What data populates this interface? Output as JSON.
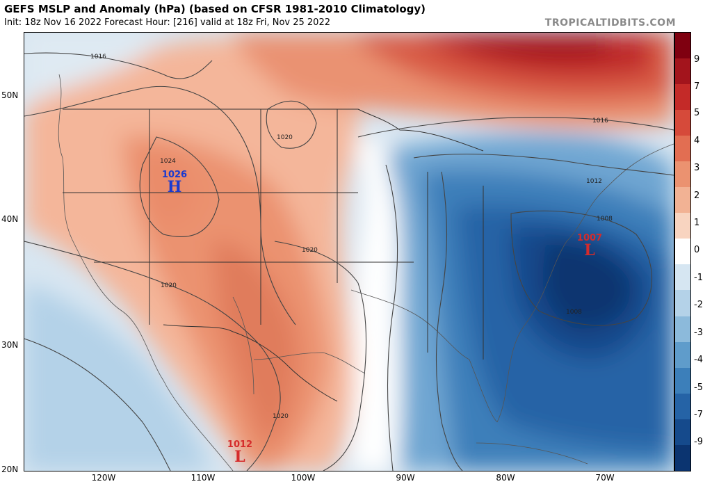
{
  "header": {
    "title": "GEFS MSLP and Anomaly (hPa) (based on CFSR 1981-2010 Climatology)",
    "subtitle": "Init: 18z Nov 16 2022   Forecast Hour: [216]   valid at 18z Fri, Nov 25 2022",
    "credit": "TROPICALTIDBITS.COM"
  },
  "axes": {
    "lat_labels": [
      "50N",
      "40N",
      "30N",
      "20N"
    ],
    "lon_labels": [
      "120W",
      "110W",
      "100W",
      "90W",
      "80W",
      "70W"
    ]
  },
  "colorbar": {
    "labels": [
      "9",
      "7",
      "5",
      "4",
      "3",
      "2",
      "1",
      "0",
      "-1",
      "-2",
      "-3",
      "-4",
      "-5",
      "-7",
      "-9"
    ],
    "colors": [
      "#7f0010",
      "#a3141c",
      "#c42a28",
      "#d64a3a",
      "#e26e52",
      "#eb9270",
      "#f2b294",
      "#f8d4c0",
      "#ffffff",
      "#d6e6f2",
      "#b4d2e8",
      "#8cbadb",
      "#5f9ccb",
      "#3c7fba",
      "#2563a6",
      "#154a8c",
      "#0b3470"
    ]
  },
  "pressure_centers": [
    {
      "type": "high",
      "value": "1026",
      "symbol": "H"
    },
    {
      "type": "low",
      "value": "1007",
      "symbol": "L"
    },
    {
      "type": "low",
      "value": "1012",
      "symbol": "L"
    }
  ],
  "isobar_labels": [
    "1016",
    "1024",
    "1020",
    "1020",
    "1020",
    "1020",
    "1016",
    "1012",
    "1008",
    "1008"
  ]
}
